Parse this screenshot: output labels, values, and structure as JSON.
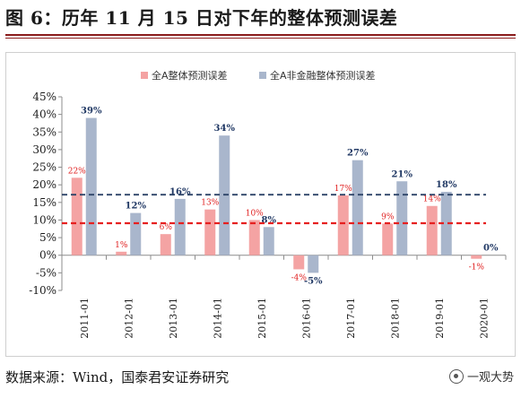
{
  "title": "图 6：历年 11 月 15 日对下年的整体预测误差",
  "source": "数据来源：Wind，国泰君安证券研究",
  "brand": "一观大势",
  "colors": {
    "series_a": "#f4a3a3",
    "series_b": "#a9b6cc",
    "line_dark": "#2e4468",
    "line_red": "#e62020",
    "label_red": "#e02020",
    "label_blue": "#203864",
    "rule": "#8b1c1c"
  },
  "chart_data": {
    "type": "bar",
    "categories": [
      "2011-01",
      "2012-01",
      "2013-01",
      "2014-01",
      "2015-01",
      "2016-01",
      "2017-01",
      "2018-01",
      "2019-01",
      "2020-01"
    ],
    "series": [
      {
        "name": "全A整体预测误差",
        "values": [
          22,
          1,
          6,
          13,
          10,
          -4,
          17,
          9,
          14,
          -1
        ],
        "labels": [
          "22%",
          "1%",
          "6%",
          "13%",
          "10%",
          "-4%",
          "17%",
          "9%",
          "14%",
          "-1%"
        ]
      },
      {
        "name": "全A非金融整体预测误差",
        "values": [
          39,
          12,
          16,
          34,
          8,
          -5,
          27,
          21,
          18,
          0
        ],
        "labels": [
          "39%",
          "12%",
          "16%",
          "34%",
          "8%",
          "-5%",
          "27%",
          "21%",
          "18%",
          "0%"
        ]
      }
    ],
    "ylim": [
      -10,
      45
    ],
    "yticks": [
      -10,
      -5,
      0,
      5,
      10,
      15,
      20,
      25,
      30,
      35,
      40,
      45
    ],
    "ytick_labels": [
      "-10%",
      "-5%",
      "0%",
      "5%",
      "10%",
      "15%",
      "20%",
      "25%",
      "30%",
      "35%",
      "40%",
      "45%"
    ],
    "reference_lines": [
      {
        "value": 17.2,
        "style": "dashed",
        "color": "#2e4468"
      },
      {
        "value": 9.1,
        "style": "dashed",
        "color": "#e62020"
      }
    ],
    "legend_position": "top",
    "grid": false
  }
}
